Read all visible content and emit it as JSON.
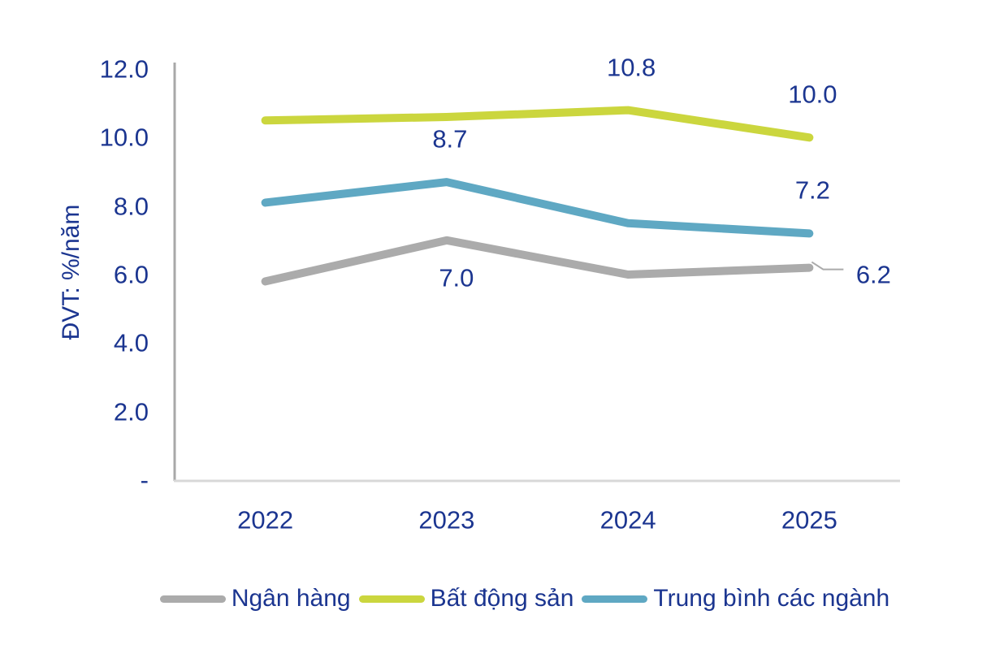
{
  "chart_data": {
    "type": "line",
    "title": "",
    "unit_label": "ĐVT: %/năm",
    "categories": [
      "2022",
      "2023",
      "2024",
      "2025"
    ],
    "series": [
      {
        "name": "Ngân hàng",
        "color": "#ababab",
        "values": [
          5.8,
          7.0,
          6.0,
          6.2
        ]
      },
      {
        "name": "Bất động sản",
        "color": "#cbd63e",
        "values": [
          10.5,
          10.6,
          10.8,
          10.0
        ]
      },
      {
        "name": "Trung bình các ngành",
        "color": "#5fa8c3",
        "values": [
          8.1,
          8.7,
          7.5,
          7.2
        ]
      }
    ],
    "ylim": [
      0,
      12
    ],
    "y_ticks": [
      {
        "value": 12,
        "label": "12.0"
      },
      {
        "value": 10,
        "label": "10.0"
      },
      {
        "value": 8,
        "label": "8.0"
      },
      {
        "value": 6,
        "label": "6.0"
      },
      {
        "value": 4,
        "label": "4.0"
      },
      {
        "value": 2,
        "label": "2.0"
      },
      {
        "value": 0,
        "label": "-"
      }
    ],
    "point_labels": [
      {
        "series": 1,
        "index": 2,
        "text": "10.8",
        "placement": "above"
      },
      {
        "series": 1,
        "index": 3,
        "text": "10.0",
        "placement": "above"
      },
      {
        "series": 2,
        "index": 1,
        "text": "8.7",
        "placement": "above"
      },
      {
        "series": 2,
        "index": 3,
        "text": "7.2",
        "placement": "above"
      },
      {
        "series": 0,
        "index": 1,
        "text": "7.0",
        "placement": "below"
      },
      {
        "series": 0,
        "index": 3,
        "text": "6.2",
        "placement": "callout-right"
      }
    ],
    "grid": false,
    "legend_position": "bottom",
    "colors": {
      "text": "#1b3590",
      "y_axis_line": "#a8a8a8",
      "x_axis_line": "#d8d8d8",
      "callout_leader": "#ababab",
      "background": "#ffffff"
    }
  }
}
